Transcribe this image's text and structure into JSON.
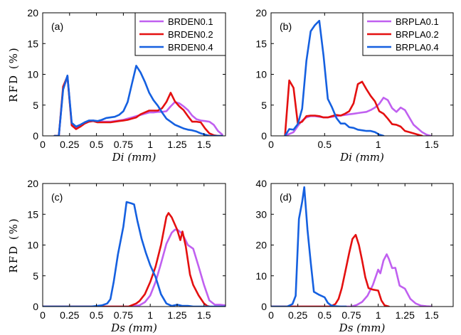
{
  "chart_data": [
    {
      "type": "line",
      "panel_label": "(a)",
      "xlabel": "Di  (mm)",
      "ylabel": "RFD  (%)",
      "xlim": [
        0,
        1.7
      ],
      "ylim": [
        0,
        20
      ],
      "xticks": [
        0,
        0.25,
        0.5,
        0.75,
        1,
        1.25,
        1.5
      ],
      "xtick_labels": [
        "0",
        "0.25",
        "0.5",
        "0.75",
        "1",
        "1.25",
        "1.5"
      ],
      "yticks": [
        0,
        5,
        10,
        15,
        20
      ],
      "ytick_labels": [
        "0",
        "5",
        "10",
        "15",
        "20"
      ],
      "legend": "top-right",
      "series": [
        {
          "name": "BRDEN0.1",
          "color": "#c060f0",
          "x": [
            0.11,
            0.15,
            0.19,
            0.23,
            0.27,
            0.31,
            0.35,
            0.39,
            0.43,
            0.47,
            0.51,
            0.55,
            0.59,
            0.63,
            0.67,
            0.71,
            0.75,
            0.79,
            0.83,
            0.87,
            0.91,
            0.95,
            0.99,
            1.03,
            1.07,
            1.11,
            1.15,
            1.19,
            1.23,
            1.27,
            1.31,
            1.35,
            1.39,
            1.43,
            1.47,
            1.51,
            1.55,
            1.59,
            1.63,
            1.67
          ],
          "y": [
            0,
            0,
            7.6,
            9.6,
            2.0,
            1.3,
            1.6,
            2.1,
            2.4,
            2.5,
            2.3,
            2.3,
            2.3,
            2.3,
            2.4,
            2.5,
            2.6,
            2.8,
            3.0,
            3.2,
            3.4,
            3.6,
            3.8,
            3.8,
            3.9,
            3.9,
            4.0,
            4.8,
            5.5,
            5.3,
            4.8,
            4.2,
            3.3,
            2.7,
            2.5,
            2.4,
            2.3,
            1.8,
            0.8,
            0.2
          ]
        },
        {
          "name": "BRDEN0.2",
          "color": "#e41010",
          "x": [
            0.11,
            0.15,
            0.19,
            0.23,
            0.27,
            0.31,
            0.35,
            0.39,
            0.43,
            0.47,
            0.51,
            0.55,
            0.59,
            0.63,
            0.67,
            0.71,
            0.75,
            0.79,
            0.83,
            0.87,
            0.91,
            0.95,
            0.99,
            1.03,
            1.07,
            1.11,
            1.15,
            1.19,
            1.23,
            1.27,
            1.31,
            1.35,
            1.39,
            1.43,
            1.47,
            1.51,
            1.55,
            1.59,
            1.63,
            1.67
          ],
          "y": [
            0,
            0,
            8.0,
            9.7,
            1.7,
            1.1,
            1.5,
            2.0,
            2.3,
            2.4,
            2.2,
            2.2,
            2.2,
            2.2,
            2.3,
            2.4,
            2.5,
            2.6,
            2.8,
            3.0,
            3.5,
            3.8,
            4.1,
            4.1,
            4.1,
            4.5,
            5.5,
            7.0,
            5.6,
            4.8,
            4.2,
            3.2,
            2.3,
            2.3,
            2.2,
            1.2,
            0.4,
            0.1,
            0,
            0
          ]
        },
        {
          "name": "BRDEN0.4",
          "color": "#1560e0",
          "x": [
            0.11,
            0.15,
            0.19,
            0.23,
            0.27,
            0.31,
            0.35,
            0.39,
            0.43,
            0.47,
            0.51,
            0.55,
            0.59,
            0.63,
            0.67,
            0.71,
            0.75,
            0.79,
            0.83,
            0.87,
            0.91,
            0.95,
            0.99,
            1.03,
            1.07,
            1.11,
            1.15,
            1.19,
            1.23,
            1.27,
            1.31,
            1.35,
            1.39,
            1.43,
            1.47,
            1.51,
            1.55,
            1.59,
            1.63,
            1.67
          ],
          "y": [
            0,
            0,
            7.5,
            9.8,
            2.1,
            1.5,
            1.8,
            2.2,
            2.5,
            2.5,
            2.4,
            2.6,
            2.9,
            3.0,
            3.1,
            3.4,
            4.0,
            5.5,
            8.5,
            11.4,
            10.3,
            8.8,
            7.0,
            5.8,
            4.9,
            3.8,
            2.8,
            2.3,
            1.8,
            1.5,
            1.2,
            1.0,
            0.9,
            0.7,
            0.4,
            0.2,
            0,
            0,
            0,
            0
          ]
        }
      ]
    },
    {
      "type": "line",
      "panel_label": "(b)",
      "xlabel": "Di  (mm)",
      "ylabel": "",
      "xlim": [
        0,
        1.7
      ],
      "ylim": [
        0,
        20
      ],
      "xticks": [
        0,
        0.5,
        1,
        1.5
      ],
      "xtick_labels": [
        "0",
        "0.5",
        "1",
        "1.5"
      ],
      "yticks": [
        0,
        5,
        10,
        15,
        20
      ],
      "ytick_labels": [
        "0",
        "5",
        "10",
        "15",
        "20"
      ],
      "legend": "top-right",
      "series": [
        {
          "name": "BRPLA0.1",
          "color": "#c060f0",
          "x": [
            0.13,
            0.17,
            0.21,
            0.25,
            0.29,
            0.33,
            0.37,
            0.41,
            0.45,
            0.49,
            0.53,
            0.57,
            0.61,
            0.65,
            0.69,
            0.73,
            0.77,
            0.81,
            0.85,
            0.89,
            0.93,
            0.97,
            1.01,
            1.05,
            1.09,
            1.13,
            1.17,
            1.21,
            1.25,
            1.29,
            1.33,
            1.37,
            1.41,
            1.45,
            1.49
          ],
          "y": [
            0,
            0.3,
            0.6,
            1.6,
            2.5,
            3.0,
            3.2,
            3.2,
            3.1,
            3.0,
            3.0,
            3.1,
            3.2,
            3.3,
            3.4,
            3.5,
            3.6,
            3.7,
            3.8,
            3.9,
            4.2,
            4.6,
            5.2,
            6.2,
            5.8,
            4.5,
            3.9,
            4.6,
            4.2,
            3.0,
            1.8,
            1.2,
            0.6,
            0.2,
            0
          ]
        },
        {
          "name": "BRPLA0.2",
          "color": "#e41010",
          "x": [
            0.13,
            0.17,
            0.21,
            0.25,
            0.29,
            0.33,
            0.37,
            0.41,
            0.45,
            0.49,
            0.53,
            0.57,
            0.61,
            0.65,
            0.69,
            0.73,
            0.77,
            0.81,
            0.85,
            0.89,
            0.93,
            0.97,
            1.01,
            1.05,
            1.09,
            1.13,
            1.17,
            1.21,
            1.25,
            1.29,
            1.33,
            1.37,
            1.41
          ],
          "y": [
            0,
            9.0,
            7.8,
            2.0,
            2.3,
            3.2,
            3.3,
            3.3,
            3.2,
            3.0,
            3.0,
            3.2,
            3.4,
            3.3,
            3.6,
            4.0,
            5.3,
            8.4,
            8.8,
            7.6,
            6.5,
            5.6,
            4.0,
            3.6,
            2.8,
            1.9,
            1.8,
            1.5,
            0.8,
            0.6,
            0.4,
            0.2,
            0
          ]
        },
        {
          "name": "BRPLA0.4",
          "color": "#1560e0",
          "x": [
            0.13,
            0.17,
            0.21,
            0.25,
            0.29,
            0.33,
            0.37,
            0.41,
            0.45,
            0.49,
            0.53,
            0.57,
            0.61,
            0.65,
            0.69,
            0.73,
            0.77,
            0.81,
            0.85,
            0.89,
            0.93,
            0.97,
            1.01,
            1.05
          ],
          "y": [
            0,
            1.1,
            1.0,
            1.9,
            4.4,
            12.2,
            17.0,
            18.0,
            18.7,
            13.0,
            6.0,
            4.6,
            2.9,
            2.0,
            2.0,
            1.4,
            1.3,
            1.0,
            0.9,
            0.8,
            0.8,
            0.6,
            0.2,
            0
          ]
        }
      ]
    },
    {
      "type": "line",
      "panel_label": "(c)",
      "xlabel": "Ds  (mm)",
      "ylabel": "RFD  (%)",
      "xlim": [
        0,
        1.7
      ],
      "ylim": [
        0,
        20
      ],
      "xticks": [
        0,
        0.25,
        0.5,
        0.75,
        1,
        1.25,
        1.5
      ],
      "xtick_labels": [
        "0",
        "0.25",
        "0.5",
        "0.75",
        "1",
        "1.25",
        "1.5"
      ],
      "yticks": [
        0,
        5,
        10,
        15,
        20
      ],
      "ytick_labels": [
        "0",
        "5",
        "10",
        "15",
        "20"
      ],
      "legend": "none",
      "series": [
        {
          "name": "",
          "color": "#c060f0",
          "x": [
            0,
            0.8,
            0.9,
            0.95,
            1.0,
            1.05,
            1.1,
            1.15,
            1.2,
            1.23,
            1.26,
            1.3,
            1.35,
            1.4,
            1.45,
            1.5,
            1.55,
            1.6,
            1.65,
            1.7
          ],
          "y": [
            0,
            0,
            0.2,
            0.7,
            1.8,
            4.0,
            7.0,
            10.2,
            12.0,
            12.5,
            12.4,
            11.8,
            10.0,
            9.4,
            6.5,
            3.5,
            1.0,
            0.3,
            0.3,
            0.2
          ]
        },
        {
          "name": "",
          "color": "#e41010",
          "x": [
            0,
            0.8,
            0.87,
            0.9,
            0.95,
            1.0,
            1.05,
            1.1,
            1.15,
            1.17,
            1.2,
            1.25,
            1.28,
            1.3,
            1.33,
            1.37,
            1.4,
            1.45,
            1.5,
            1.53,
            1.55
          ],
          "y": [
            0,
            0,
            0.5,
            0.9,
            2.0,
            4.0,
            6.5,
            10.0,
            14.6,
            15.2,
            14.5,
            12.5,
            10.8,
            12.2,
            9.8,
            5.2,
            3.5,
            1.8,
            0.5,
            0.1,
            0
          ]
        },
        {
          "name": "",
          "color": "#1560e0",
          "x": [
            0,
            0.45,
            0.55,
            0.6,
            0.63,
            0.66,
            0.7,
            0.75,
            0.78,
            0.82,
            0.85,
            0.88,
            0.92,
            0.96,
            1.0,
            1.05,
            1.1,
            1.15,
            1.2,
            1.25,
            1.3,
            1.35,
            1.4,
            1.5,
            1.6,
            1.7
          ],
          "y": [
            0,
            0,
            0.2,
            0.5,
            1.2,
            4.0,
            8.5,
            13.0,
            17.0,
            16.8,
            16.6,
            14.0,
            11.0,
            8.7,
            6.7,
            4.8,
            2.0,
            0.5,
            0.1,
            0.3,
            0.1,
            0.1,
            0,
            0,
            0,
            0
          ]
        }
      ]
    },
    {
      "type": "line",
      "panel_label": "(d)",
      "xlabel": "Ds  (mm)",
      "ylabel": "",
      "xlim": [
        0,
        1.7
      ],
      "ylim": [
        0,
        40
      ],
      "xticks": [
        0,
        0.25,
        0.5,
        0.75,
        1,
        1.25,
        1.5
      ],
      "xtick_labels": [
        "0",
        "0.25",
        "0.5",
        "0.75",
        "1",
        "1.25",
        "1.5"
      ],
      "yticks": [
        0,
        10,
        20,
        30,
        40
      ],
      "ytick_labels": [
        "0",
        "10",
        "20",
        "30",
        "40"
      ],
      "legend": "none",
      "series": [
        {
          "name": "",
          "color": "#c060f0",
          "x": [
            0,
            0.75,
            0.8,
            0.85,
            0.9,
            0.95,
            1.0,
            1.02,
            1.05,
            1.08,
            1.1,
            1.13,
            1.16,
            1.2,
            1.25,
            1.3,
            1.35,
            1.4,
            1.45,
            1.5
          ],
          "y": [
            0,
            0,
            0.5,
            1.5,
            3.5,
            7.0,
            12.0,
            10.8,
            15.0,
            17.0,
            15.5,
            12.5,
            12.6,
            6.8,
            5.8,
            2.5,
            1.0,
            0.3,
            0.1,
            0
          ]
        },
        {
          "name": "",
          "color": "#e41010",
          "x": [
            0,
            0.55,
            0.6,
            0.63,
            0.66,
            0.7,
            0.73,
            0.76,
            0.79,
            0.82,
            0.85,
            0.88,
            0.91,
            0.95,
            1.0,
            1.03,
            1.06,
            1.1
          ],
          "y": [
            0,
            0,
            0.8,
            2.5,
            6.0,
            12.5,
            17.5,
            22.0,
            23.3,
            20.0,
            15.0,
            9.5,
            6.0,
            5.5,
            5.2,
            2.0,
            0.4,
            0
          ]
        },
        {
          "name": "",
          "color": "#1560e0",
          "x": [
            0,
            0.15,
            0.2,
            0.23,
            0.26,
            0.29,
            0.31,
            0.34,
            0.37,
            0.4,
            0.45,
            0.5,
            0.53,
            0.56,
            0.6,
            0.65,
            0.7
          ],
          "y": [
            0,
            0,
            0.8,
            3.5,
            28.5,
            34.0,
            38.8,
            25.0,
            14.5,
            4.8,
            3.8,
            3.0,
            1.2,
            0.4,
            0.1,
            0,
            0
          ]
        }
      ]
    }
  ]
}
